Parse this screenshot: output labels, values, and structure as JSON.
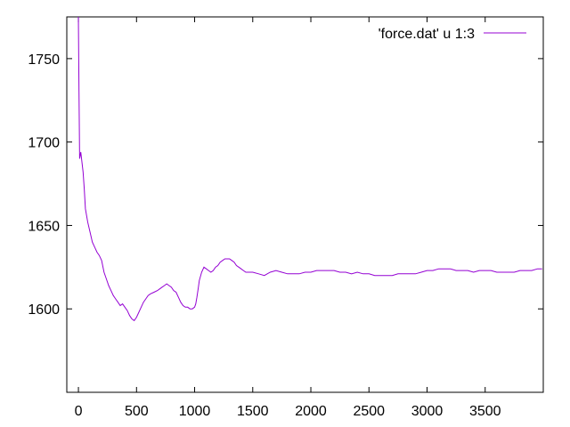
{
  "chart_data": {
    "type": "line",
    "title": "",
    "xlabel": "",
    "ylabel": "",
    "xlim": [
      -100,
      4000
    ],
    "ylim": [
      1550,
      1775
    ],
    "x_ticks": [
      0,
      500,
      1000,
      1500,
      2000,
      2500,
      3000,
      3500
    ],
    "y_ticks": [
      1600,
      1650,
      1700,
      1750
    ],
    "grid": false,
    "legend": "top-right",
    "series": [
      {
        "name": "'force.dat' u 1:3",
        "color": "#9400d3",
        "x": [
          0,
          5,
          10,
          20,
          30,
          40,
          50,
          60,
          80,
          100,
          120,
          140,
          160,
          180,
          200,
          220,
          240,
          260,
          280,
          300,
          320,
          340,
          360,
          380,
          400,
          420,
          440,
          460,
          480,
          500,
          520,
          540,
          560,
          580,
          600,
          620,
          650,
          680,
          700,
          720,
          740,
          760,
          780,
          800,
          820,
          840,
          860,
          880,
          900,
          920,
          940,
          960,
          980,
          1000,
          1010,
          1020,
          1030,
          1040,
          1060,
          1080,
          1100,
          1120,
          1140,
          1160,
          1180,
          1200,
          1220,
          1240,
          1260,
          1280,
          1300,
          1320,
          1340,
          1360,
          1380,
          1400,
          1420,
          1440,
          1460,
          1500,
          1550,
          1600,
          1650,
          1700,
          1750,
          1800,
          1850,
          1900,
          1950,
          2000,
          2050,
          2100,
          2150,
          2200,
          2250,
          2300,
          2350,
          2400,
          2450,
          2500,
          2550,
          2600,
          2650,
          2700,
          2750,
          2800,
          2850,
          2900,
          2950,
          3000,
          3050,
          3100,
          3150,
          3200,
          3250,
          3300,
          3350,
          3400,
          3450,
          3500,
          3550,
          3600,
          3650,
          3700,
          3750,
          3800,
          3850,
          3900,
          3950,
          3990
        ],
        "y": [
          1775,
          1730,
          1690,
          1694,
          1688,
          1682,
          1672,
          1660,
          1652,
          1646,
          1640,
          1637,
          1634,
          1632,
          1629,
          1622,
          1618,
          1614,
          1611,
          1608,
          1606,
          1604,
          1602,
          1603,
          1601,
          1599,
          1596,
          1594,
          1593,
          1595,
          1598,
          1601,
          1604,
          1606,
          1608,
          1609,
          1610,
          1611,
          1612,
          1613,
          1614,
          1615,
          1614,
          1613,
          1611,
          1610,
          1607,
          1604,
          1602,
          1601,
          1601,
          1600,
          1600,
          1601,
          1603,
          1607,
          1612,
          1617,
          1622,
          1625,
          1624,
          1623,
          1622,
          1623,
          1625,
          1626,
          1628,
          1629,
          1630,
          1630,
          1630,
          1629,
          1628,
          1626,
          1625,
          1624,
          1623,
          1622,
          1622,
          1622,
          1621,
          1620,
          1622,
          1623,
          1622,
          1621,
          1621,
          1621,
          1622,
          1622,
          1623,
          1623,
          1623,
          1623,
          1622,
          1622,
          1621,
          1622,
          1621,
          1621,
          1620,
          1620,
          1620,
          1620,
          1621,
          1621,
          1621,
          1621,
          1622,
          1623,
          1623,
          1624,
          1624,
          1624,
          1623,
          1623,
          1623,
          1622,
          1623,
          1623,
          1623,
          1622,
          1622,
          1622,
          1622,
          1623,
          1623,
          1623,
          1624,
          1624
        ]
      }
    ]
  }
}
